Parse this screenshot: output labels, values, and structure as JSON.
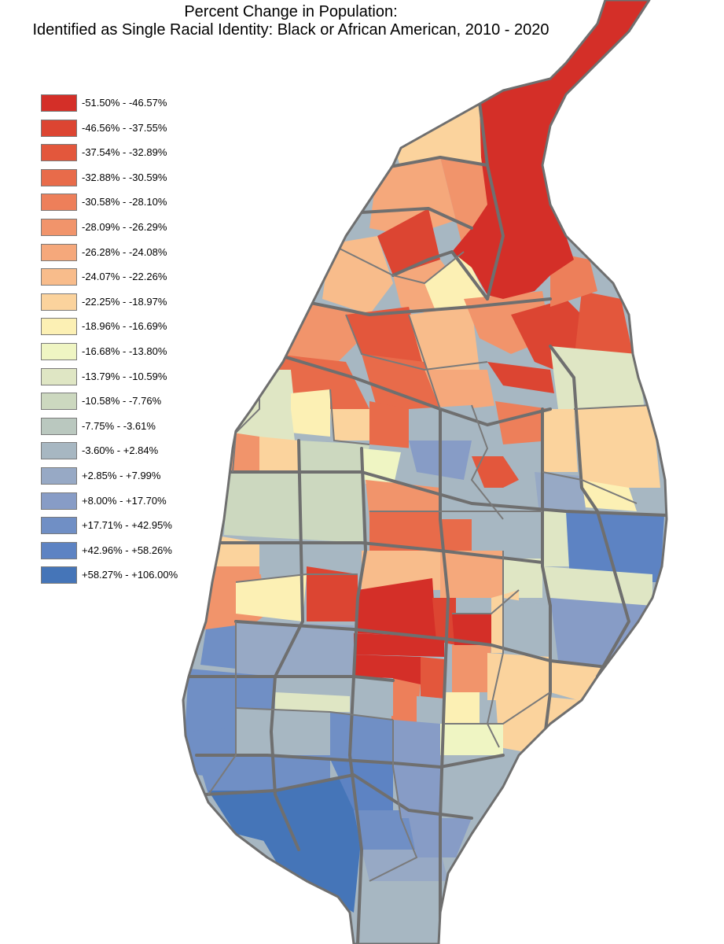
{
  "title": {
    "line1": "Percent Change in Population:",
    "line2": "Identified as Single Racial Identity: Black or African American, 2010 - 2020"
  },
  "legend": [
    {
      "label": "-51.50% - -46.57%",
      "color": "#d42f28"
    },
    {
      "label": "-46.56% - -37.55%",
      "color": "#dc4532"
    },
    {
      "label": "-37.54% - -32.89%",
      "color": "#e3573c"
    },
    {
      "label": "-32.88% - -30.59%",
      "color": "#e86b4a"
    },
    {
      "label": "-30.58% - -28.10%",
      "color": "#ed7f5a"
    },
    {
      "label": "-28.09% - -26.29%",
      "color": "#f1946b"
    },
    {
      "label": "-26.28% - -24.08%",
      "color": "#f5a87b"
    },
    {
      "label": "-24.07% - -22.26%",
      "color": "#f8bc8b"
    },
    {
      "label": "-22.25% - -18.97%",
      "color": "#fbd39d"
    },
    {
      "label": "-18.96% - -16.69%",
      "color": "#fcf0b4"
    },
    {
      "label": "-16.68% - -13.80%",
      "color": "#eff5c3"
    },
    {
      "label": "-13.79% - -10.59%",
      "color": "#dfe6c4"
    },
    {
      "label": "-10.58% - -7.76%",
      "color": "#ccd8bf"
    },
    {
      "label": "-7.75% - -3.61%",
      "color": "#bac8bf"
    },
    {
      "label": "-3.60% - +2.84%",
      "color": "#a7b7c2"
    },
    {
      "label": "+2.85% - +7.99%",
      "color": "#97a9c5"
    },
    {
      "label": "+8.00% - +17.70%",
      "color": "#879cc6"
    },
    {
      "label": "+17.71% - +42.95%",
      "color": "#708fc5"
    },
    {
      "label": "+42.96% - +58.26%",
      "color": "#5d83c3"
    },
    {
      "label": "+58.27% - +106.00%",
      "color": "#4575b8"
    }
  ],
  "colors": {
    "boundary": "#6f6f6f",
    "background": "#ffffff"
  }
}
